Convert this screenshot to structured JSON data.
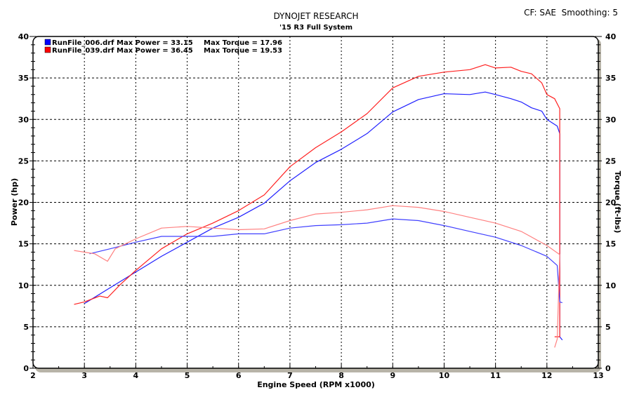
{
  "header": {
    "cf_label": "CF: SAE  Smoothing: 5"
  },
  "chart_data": {
    "type": "line",
    "title": "DYNOJET RESEARCH",
    "subtitle": "'15 R3 Full System",
    "xlabel": "Engine Speed (RPM x1000)",
    "ylabel": "Power (hp)",
    "y2label": "Torque (ft-lbs)",
    "xlim": [
      2,
      13
    ],
    "ylim": [
      0,
      40
    ],
    "y2lim": [
      0,
      40
    ],
    "xticks": [
      2,
      3,
      4,
      5,
      6,
      7,
      8,
      9,
      10,
      11,
      12,
      13
    ],
    "yticks": [
      0,
      5,
      10,
      15,
      20,
      25,
      30,
      35,
      40
    ],
    "grid": true,
    "legend_placement": "top-left",
    "legend": [
      {
        "text": "RunFile_006.drf Max Power = 33.15",
        "torque_text": "Max Torque = 17.96",
        "color": "#0000ff"
      },
      {
        "text": "RunFile_039.drf Max Power = 36.45",
        "torque_text": "Max Torque = 19.53",
        "color": "#ff0000"
      }
    ],
    "series": [
      {
        "name": "RunFile_006.drf",
        "measure": "power",
        "color": "#2020ff",
        "x": [
          3.0,
          3.5,
          4.0,
          4.5,
          5.0,
          5.5,
          6.0,
          6.5,
          7.0,
          7.5,
          8.0,
          8.5,
          9.0,
          9.5,
          10.0,
          10.5,
          10.8,
          11.0,
          11.3,
          11.5,
          11.7,
          11.9,
          12.0,
          12.2,
          12.25,
          12.25,
          12.3
        ],
        "y": [
          7.8,
          9.7,
          11.6,
          13.5,
          15.2,
          16.9,
          18.2,
          19.9,
          22.6,
          24.8,
          26.4,
          28.3,
          30.9,
          32.4,
          33.1,
          33.0,
          33.3,
          33.0,
          32.5,
          32.1,
          31.4,
          31.0,
          30.0,
          29.2,
          28.3,
          3.8,
          3.4
        ]
      },
      {
        "name": "RunFile_039.drf",
        "measure": "power",
        "color": "#ff2020",
        "x": [
          2.8,
          3.0,
          3.3,
          3.45,
          3.7,
          4.0,
          4.5,
          5.0,
          5.5,
          6.0,
          6.5,
          7.0,
          7.5,
          8.0,
          8.5,
          9.0,
          9.5,
          10.0,
          10.5,
          10.8,
          11.0,
          11.3,
          11.5,
          11.7,
          11.9,
          12.0,
          12.15,
          12.25,
          12.25,
          12.15
        ],
        "y": [
          7.7,
          8.0,
          8.7,
          8.5,
          10.1,
          11.8,
          14.4,
          16.2,
          17.5,
          19.0,
          20.9,
          24.3,
          26.6,
          28.5,
          30.7,
          33.8,
          35.2,
          35.7,
          36.0,
          36.6,
          36.2,
          36.3,
          35.8,
          35.5,
          34.4,
          33.0,
          32.5,
          31.3,
          3.8,
          3.8
        ]
      },
      {
        "name": "RunFile_006.drf",
        "measure": "torque",
        "color": "#4040ff",
        "x": [
          3.1,
          3.5,
          4.0,
          4.5,
          5.0,
          5.5,
          6.0,
          6.5,
          7.0,
          7.5,
          8.0,
          8.5,
          9.0,
          9.5,
          10.0,
          10.5,
          11.0,
          11.5,
          12.0,
          12.2,
          12.25,
          12.3
        ],
        "y": [
          13.8,
          14.4,
          15.2,
          15.9,
          15.9,
          15.9,
          16.2,
          16.2,
          16.9,
          17.2,
          17.3,
          17.5,
          18.0,
          17.8,
          17.2,
          16.5,
          15.8,
          14.8,
          13.5,
          12.4,
          8.0,
          7.9
        ]
      },
      {
        "name": "RunFile_039.drf",
        "measure": "torque",
        "color": "#ff8080",
        "x": [
          2.8,
          3.2,
          3.45,
          3.6,
          4.0,
          4.5,
          5.0,
          5.5,
          6.0,
          6.5,
          7.0,
          7.5,
          8.0,
          8.5,
          9.0,
          9.5,
          10.0,
          10.5,
          11.0,
          11.5,
          12.0,
          12.25,
          12.2,
          12.15
        ],
        "y": [
          14.2,
          13.8,
          12.9,
          14.4,
          15.6,
          16.9,
          17.1,
          16.9,
          16.7,
          16.8,
          17.8,
          18.6,
          18.8,
          19.1,
          19.6,
          19.4,
          18.9,
          18.2,
          17.5,
          16.5,
          14.8,
          13.7,
          3.5,
          2.5
        ]
      }
    ]
  }
}
